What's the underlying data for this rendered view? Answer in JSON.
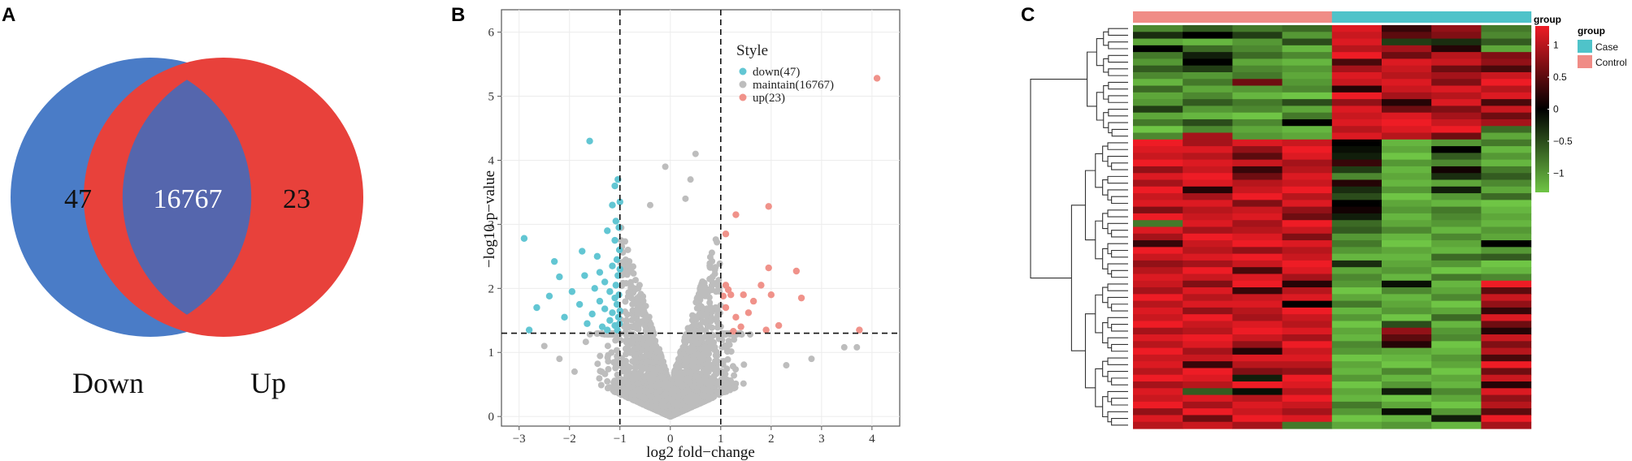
{
  "panels": {
    "a": {
      "letter": "A"
    },
    "b": {
      "letter": "B"
    },
    "c": {
      "letter": "C"
    }
  },
  "colors": {
    "down_circle": "#4a7cc7",
    "up_circle": "#e8413b",
    "overlap": "#5566ad",
    "down_pt": "#62c6d3",
    "maintain_pt": "#bdbdbd",
    "up_pt": "#f0928a",
    "heat_high": "#ee1c25",
    "heat_mid": "#000000",
    "heat_low": "#6fc545",
    "case": "#4fc3c9",
    "control": "#f08c86"
  },
  "chart_data": [
    {
      "type": "venn",
      "sets": [
        "Down",
        "Up"
      ],
      "only_down": "47",
      "intersection": "16767",
      "only_up": "23"
    },
    {
      "type": "scatter",
      "subtype": "volcano",
      "xlabel": "log2 fold−change",
      "ylabel": "−log10 p−value",
      "xlim": [
        -3.35,
        4.55
      ],
      "ylim": [
        -0.15,
        6.35
      ],
      "xticks": [
        -3,
        -2,
        -1,
        0,
        1,
        2,
        3,
        4
      ],
      "yticks": [
        0,
        1,
        2,
        3,
        4,
        5,
        6
      ],
      "vlines": [
        -1,
        1
      ],
      "hline": 1.3,
      "legend": {
        "title": "Style",
        "position": "top-right",
        "entries": [
          {
            "label": "down(47)",
            "key": "down"
          },
          {
            "label": "maintain(16767)",
            "key": "maintain"
          },
          {
            "label": "up(23)",
            "key": "up"
          }
        ]
      },
      "series": [
        {
          "name": "down",
          "points": [
            [
              -2.9,
              2.78
            ],
            [
              -2.8,
              1.35
            ],
            [
              -2.65,
              1.7
            ],
            [
              -2.4,
              1.88
            ],
            [
              -2.3,
              2.42
            ],
            [
              -2.2,
              2.18
            ],
            [
              -2.1,
              1.55
            ],
            [
              -1.95,
              1.95
            ],
            [
              -1.8,
              1.75
            ],
            [
              -1.75,
              2.58
            ],
            [
              -1.7,
              2.2
            ],
            [
              -1.65,
              1.45
            ],
            [
              -1.6,
              4.3
            ],
            [
              -1.55,
              1.6
            ],
            [
              -1.5,
              2.0
            ],
            [
              -1.45,
              2.5
            ],
            [
              -1.4,
              2.25
            ],
            [
              -1.4,
              1.8
            ],
            [
              -1.35,
              1.4
            ],
            [
              -1.3,
              1.68
            ],
            [
              -1.3,
              2.1
            ],
            [
              -1.25,
              2.9
            ],
            [
              -1.25,
              1.35
            ],
            [
              -1.2,
              1.5
            ],
            [
              -1.2,
              1.95
            ],
            [
              -1.15,
              3.3
            ],
            [
              -1.15,
              2.35
            ],
            [
              -1.15,
              1.62
            ],
            [
              -1.1,
              3.6
            ],
            [
              -1.1,
              2.75
            ],
            [
              -1.1,
              1.85
            ],
            [
              -1.1,
              1.42
            ],
            [
              -1.08,
              2.05
            ],
            [
              -1.08,
              3.05
            ],
            [
              -1.06,
              1.75
            ],
            [
              -1.06,
              2.45
            ],
            [
              -1.05,
              1.35
            ],
            [
              -1.04,
              3.7
            ],
            [
              -1.04,
              2.2
            ],
            [
              -1.03,
              1.55
            ],
            [
              -1.02,
              2.95
            ],
            [
              -1.02,
              1.9
            ],
            [
              -1.01,
              2.6
            ],
            [
              -1.01,
              1.45
            ],
            [
              -1.0,
              3.35
            ],
            [
              -1.0,
              2.3
            ],
            [
              -1.0,
              1.65
            ]
          ]
        },
        {
          "name": "up",
          "points": [
            [
              4.1,
              5.28
            ],
            [
              1.95,
              3.28
            ],
            [
              1.3,
              3.15
            ],
            [
              1.1,
              2.85
            ],
            [
              2.5,
              2.27
            ],
            [
              1.95,
              2.32
            ],
            [
              1.1,
              2.05
            ],
            [
              1.15,
              1.98
            ],
            [
              1.2,
              1.9
            ],
            [
              1.45,
              1.9
            ],
            [
              1.65,
              1.8
            ],
            [
              1.05,
              1.88
            ],
            [
              2.0,
              1.9
            ],
            [
              2.6,
              1.85
            ],
            [
              1.8,
              2.05
            ],
            [
              1.1,
              1.7
            ],
            [
              1.3,
              1.55
            ],
            [
              1.55,
              1.62
            ],
            [
              1.4,
              1.4
            ],
            [
              2.15,
              1.42
            ],
            [
              1.25,
              1.33
            ],
            [
              1.9,
              1.35
            ],
            [
              3.75,
              1.35
            ]
          ]
        }
      ]
    },
    {
      "type": "heatmap",
      "columns": 8,
      "rows": 60,
      "column_groups": [
        "Control",
        "Control",
        "Control",
        "Control",
        "Case",
        "Case",
        "Case",
        "Case"
      ],
      "legend_scale_title": "group",
      "scale_ticks": [
        1,
        0.5,
        0,
        -0.5,
        -1
      ],
      "scale_range": [
        -1.3,
        1.3
      ],
      "group_legend": {
        "title": "group",
        "entries": [
          "Case",
          "Control"
        ]
      },
      "matrix": [
        [
          -0.9,
          -0.6,
          -0.8,
          -0.7,
          1.2,
          0.3,
          0.8,
          -0.8
        ],
        [
          -0.3,
          0.0,
          -0.4,
          -1.0,
          1.1,
          0.5,
          0.7,
          -0.9
        ],
        [
          -1.1,
          -1.2,
          -1.0,
          -0.5,
          1.2,
          -0.4,
          -0.3,
          -0.6
        ],
        [
          0.0,
          -0.7,
          -0.9,
          -1.2,
          1.0,
          0.9,
          0.2,
          -1.1
        ],
        [
          -0.8,
          -0.2,
          -0.7,
          -0.9,
          1.3,
          0.6,
          1.0,
          0.7
        ],
        [
          -1.0,
          0.0,
          -1.1,
          -1.2,
          0.4,
          1.2,
          1.1,
          0.8
        ],
        [
          -0.6,
          -0.4,
          -0.9,
          -1.0,
          0.9,
          1.1,
          0.6,
          0.4
        ],
        [
          -0.9,
          -1.0,
          -0.8,
          -1.1,
          1.2,
          1.0,
          0.9,
          1.1
        ],
        [
          -1.2,
          -0.8,
          0.6,
          -1.0,
          1.1,
          1.2,
          0.7,
          1.3
        ],
        [
          -0.7,
          -1.1,
          -1.0,
          -0.9,
          0.2,
          1.1,
          1.2,
          1.0
        ],
        [
          -1.1,
          -0.9,
          -1.2,
          -1.3,
          1.3,
          0.9,
          1.0,
          1.2
        ],
        [
          -1.0,
          -0.6,
          -0.8,
          -0.5,
          0.8,
          0.2,
          1.2,
          0.4
        ],
        [
          -0.4,
          -1.0,
          -0.9,
          -1.1,
          1.2,
          0.6,
          0.7,
          1.1
        ],
        [
          -1.1,
          -1.2,
          -1.3,
          -0.8,
          1.1,
          1.2,
          0.9,
          0.6
        ],
        [
          -0.8,
          -0.5,
          -0.9,
          0.0,
          1.2,
          1.3,
          1.1,
          0.9
        ],
        [
          -1.3,
          -0.9,
          -1.1,
          -1.2,
          1.0,
          1.2,
          1.3,
          -0.7
        ],
        [
          -0.9,
          0.9,
          -1.0,
          -1.1,
          1.2,
          1.0,
          0.6,
          -1.1
        ],
        [
          1.3,
          0.9,
          1.2,
          1.1,
          0.0,
          -1.2,
          -1.0,
          -0.8
        ],
        [
          1.2,
          1.2,
          0.8,
          1.3,
          -0.1,
          -1.1,
          0.0,
          -1.2
        ],
        [
          1.1,
          1.0,
          0.5,
          1.2,
          -0.2,
          -1.3,
          -0.6,
          -1.0
        ],
        [
          1.3,
          1.2,
          1.1,
          0.9,
          0.3,
          -1.0,
          -0.9,
          -1.2
        ],
        [
          0.8,
          1.1,
          0.3,
          1.0,
          -0.4,
          -1.2,
          0.1,
          -0.8
        ],
        [
          1.2,
          1.3,
          0.6,
          1.2,
          -0.9,
          -1.1,
          -0.3,
          -0.6
        ],
        [
          0.9,
          1.2,
          1.0,
          1.1,
          0.2,
          -1.2,
          -1.1,
          -0.9
        ],
        [
          1.3,
          0.2,
          1.1,
          1.3,
          -0.3,
          -1.0,
          -0.2,
          -1.1
        ],
        [
          1.1,
          0.9,
          1.3,
          1.0,
          -0.5,
          -1.3,
          -1.0,
          -0.7
        ],
        [
          1.2,
          1.2,
          0.7,
          1.2,
          0.0,
          -1.1,
          -1.2,
          -1.3
        ],
        [
          0.7,
          1.0,
          1.1,
          0.8,
          0.1,
          -1.0,
          -0.8,
          -1.2
        ],
        [
          1.3,
          1.1,
          1.2,
          0.6,
          -0.2,
          -1.2,
          -0.9,
          -1.1
        ],
        [
          -0.8,
          1.2,
          0.9,
          1.3,
          -0.7,
          -1.1,
          -1.0,
          -1.2
        ],
        [
          1.2,
          0.9,
          1.0,
          1.1,
          -0.6,
          -0.9,
          -1.2,
          -1.0
        ],
        [
          0.9,
          1.3,
          1.2,
          0.7,
          -1.0,
          -1.2,
          -0.9,
          -1.1
        ],
        [
          0.3,
          1.1,
          1.3,
          1.2,
          -0.8,
          -1.3,
          -1.1,
          0.0
        ],
        [
          1.3,
          1.0,
          0.8,
          1.0,
          -1.0,
          -1.1,
          -1.2,
          -1.0
        ],
        [
          1.1,
          1.2,
          1.3,
          1.1,
          -1.2,
          -1.2,
          -0.7,
          -0.6
        ],
        [
          0.8,
          0.9,
          1.1,
          1.3,
          -0.3,
          -1.1,
          -1.0,
          -1.3
        ],
        [
          1.0,
          1.3,
          0.4,
          1.2,
          -1.1,
          -1.0,
          -1.3,
          -1.2
        ],
        [
          1.2,
          1.1,
          1.2,
          0.9,
          -0.9,
          -1.2,
          -0.8,
          -0.9
        ],
        [
          1.1,
          0.7,
          1.3,
          0.2,
          -1.0,
          -0.1,
          -1.2,
          1.3
        ],
        [
          0.9,
          1.2,
          0.3,
          1.0,
          -1.3,
          -0.9,
          -1.1,
          0.5
        ],
        [
          1.3,
          1.0,
          1.1,
          1.2,
          -1.1,
          -1.2,
          -0.9,
          1.1
        ],
        [
          1.0,
          1.2,
          1.2,
          0.0,
          -0.8,
          -1.1,
          -1.3,
          0.8
        ],
        [
          1.2,
          0.8,
          1.0,
          1.3,
          -1.2,
          -1.0,
          -1.1,
          0.3
        ],
        [
          1.1,
          1.3,
          0.9,
          1.1,
          -1.0,
          -1.3,
          -0.7,
          1.2
        ],
        [
          1.3,
          1.1,
          1.2,
          1.0,
          -1.3,
          -0.5,
          -1.2,
          0.6
        ],
        [
          0.9,
          1.0,
          1.3,
          1.2,
          -1.1,
          0.8,
          -1.0,
          0.2
        ],
        [
          1.2,
          1.3,
          1.1,
          0.9,
          -1.2,
          0.5,
          -0.9,
          1.1
        ],
        [
          1.0,
          1.2,
          0.8,
          1.3,
          -0.9,
          0.2,
          -1.3,
          0.7
        ],
        [
          1.3,
          0.9,
          0.2,
          1.1,
          -1.0,
          -1.1,
          -1.2,
          1.0
        ],
        [
          1.1,
          1.1,
          1.2,
          1.2,
          -1.3,
          -1.2,
          -1.0,
          0.4
        ],
        [
          1.2,
          0.3,
          1.0,
          1.0,
          -1.1,
          -1.3,
          -1.1,
          1.3
        ],
        [
          1.0,
          1.3,
          0.7,
          0.8,
          -1.2,
          -0.9,
          -1.3,
          0.6
        ],
        [
          1.3,
          1.2,
          -0.2,
          1.3,
          -1.0,
          -1.2,
          -1.1,
          1.1
        ],
        [
          0.9,
          1.0,
          1.3,
          1.2,
          -1.3,
          -1.0,
          -1.2,
          0.2
        ],
        [
          1.2,
          -0.6,
          -0.1,
          1.0,
          -1.1,
          -0.2,
          -0.9,
          1.2
        ],
        [
          1.1,
          1.2,
          1.0,
          1.3,
          -1.2,
          -1.3,
          -1.1,
          0.8
        ],
        [
          1.3,
          0.9,
          1.2,
          1.1,
          -0.8,
          -1.1,
          -1.3,
          1.0
        ],
        [
          0.8,
          1.3,
          1.1,
          0.9,
          -1.0,
          -0.1,
          -1.0,
          0.5
        ],
        [
          1.2,
          0.6,
          1.3,
          1.2,
          -1.3,
          -1.2,
          -0.2,
          1.3
        ],
        [
          1.0,
          1.1,
          0.9,
          -0.8,
          -1.1,
          -1.0,
          -1.2,
          0.9
        ]
      ]
    }
  ]
}
